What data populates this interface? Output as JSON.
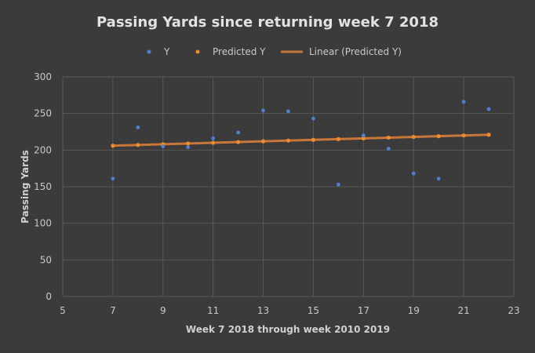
{
  "colors": {
    "background": "#3b3b3b",
    "grid": "#595959",
    "y_series": "#4e7fd6",
    "predicted_series": "#f08a2c",
    "trendline": "#c7773a"
  },
  "chart_data": {
    "type": "scatter",
    "title": "Passing Yards since returning week 7 2018",
    "xlabel": "Week 7 2018 through  week 2010 2019",
    "ylabel": "Passing Yards",
    "xlim": [
      5,
      23
    ],
    "ylim": [
      0,
      300
    ],
    "x_ticks": [
      5,
      7,
      9,
      11,
      13,
      15,
      17,
      19,
      21,
      23
    ],
    "y_ticks": [
      0,
      50,
      100,
      150,
      200,
      250,
      300
    ],
    "grid": true,
    "legend_position": "top",
    "series": [
      {
        "name": "Y",
        "marker": "point",
        "x": [
          7,
          8,
          9,
          10,
          11,
          12,
          13,
          14,
          15,
          16,
          17,
          18,
          19,
          20,
          21,
          22
        ],
        "y": [
          161,
          231,
          205,
          204,
          216,
          224,
          254,
          253,
          243,
          153,
          220,
          202,
          168,
          161,
          266,
          256
        ]
      },
      {
        "name": "Predicted Y",
        "marker": "point",
        "x": [
          7,
          8,
          9,
          10,
          11,
          12,
          13,
          14,
          15,
          16,
          17,
          18,
          19,
          20,
          21,
          22
        ],
        "y": [
          206,
          207,
          208,
          209,
          210,
          211,
          212,
          213,
          214,
          215,
          216,
          217,
          218,
          219,
          220,
          221
        ]
      },
      {
        "name": "Linear (Predicted Y)",
        "marker": "line",
        "x": [
          7,
          22
        ],
        "y": [
          206,
          221
        ]
      }
    ]
  }
}
